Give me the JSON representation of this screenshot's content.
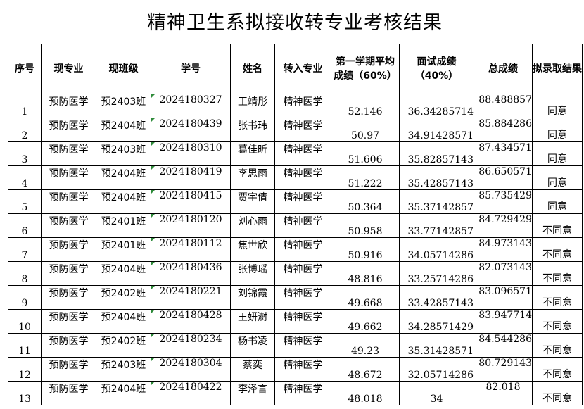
{
  "title": "精神卫生系拟接收转专业考核结果",
  "headers": {
    "index": "序号",
    "major": "现专业",
    "class": "现班级",
    "sid": "学号",
    "name": "姓名",
    "target": "转入专业",
    "first": "第一学期平均成绩（60%）",
    "interview": "面试成绩（40%）",
    "total": "总成绩",
    "result": "拟录取结果"
  },
  "rows": [
    {
      "index": "1",
      "major": "预防医学",
      "class": "预2403班",
      "sid": "2024180327",
      "name": "王靖彤",
      "target": "精神医学",
      "first": "52.146",
      "interview": "36.34285714",
      "total": "88.488857",
      "result": "同意"
    },
    {
      "index": "2",
      "major": "预防医学",
      "class": "预2404班",
      "sid": "2024180439",
      "name": "张书玮",
      "target": "精神医学",
      "first": "50.97",
      "interview": "34.91428571",
      "total": "85.884286",
      "result": "同意"
    },
    {
      "index": "3",
      "major": "预防医学",
      "class": "预2403班",
      "sid": "2024180310",
      "name": "葛佳昕",
      "target": "精神医学",
      "first": "51.606",
      "interview": "35.82857143",
      "total": "87.434571",
      "result": "同意"
    },
    {
      "index": "4",
      "major": "预防医学",
      "class": "预2404班",
      "sid": "2024180419",
      "name": "李思雨",
      "target": "精神医学",
      "first": "51.222",
      "interview": "35.42857143",
      "total": "86.650571",
      "result": "同意"
    },
    {
      "index": "5",
      "major": "预防医学",
      "class": "预2404班",
      "sid": "2024180415",
      "name": "贾宇倩",
      "target": "精神医学",
      "first": "50.364",
      "interview": "35.37142857",
      "total": "85.735429",
      "result": "同意"
    },
    {
      "index": "6",
      "major": "预防医学",
      "class": "预2401班",
      "sid": "2024180120",
      "name": "刘心雨",
      "target": "精神医学",
      "first": "50.958",
      "interview": "33.77142857",
      "total": "84.729429",
      "result": "不同意"
    },
    {
      "index": "7",
      "major": "预防医学",
      "class": "预2401班",
      "sid": "2024180112",
      "name": "焦世欣",
      "target": "精神医学",
      "first": "50.916",
      "interview": "34.05714286",
      "total": "84.973143",
      "result": "不同意"
    },
    {
      "index": "8",
      "major": "预防医学",
      "class": "预2404班",
      "sid": "2024180436",
      "name": "张博瑶",
      "target": "精神医学",
      "first": "48.816",
      "interview": "33.25714286",
      "total": "82.073143",
      "result": "不同意"
    },
    {
      "index": "9",
      "major": "预防医学",
      "class": "预2402班",
      "sid": "2024180221",
      "name": "刘锦霞",
      "target": "精神医学",
      "first": "49.668",
      "interview": "33.42857143",
      "total": "83.096571",
      "result": "不同意"
    },
    {
      "index": "10",
      "major": "预防医学",
      "class": "预2404班",
      "sid": "2024180428",
      "name": "王妍澍",
      "target": "精神医学",
      "first": "49.662",
      "interview": "34.28571429",
      "total": "83.947714",
      "result": "不同意"
    },
    {
      "index": "11",
      "major": "预防医学",
      "class": "预2402班",
      "sid": "2024180234",
      "name": "杨书凌",
      "target": "精神医学",
      "first": "49.23",
      "interview": "35.31428571",
      "total": "84.544286",
      "result": "不同意"
    },
    {
      "index": "12",
      "major": "预防医学",
      "class": "预2403班",
      "sid": "2024180304",
      "name": "蔡奕",
      "target": "精神医学",
      "first": "48.672",
      "interview": "32.05714286",
      "total": "80.729143",
      "result": "不同意"
    },
    {
      "index": "13",
      "major": "预防医学",
      "class": "预2404班",
      "sid": "2024180422",
      "name": "李泽言",
      "target": "精神医学",
      "first": "48.018",
      "interview": "34",
      "total": "82.018",
      "result": "不同意"
    }
  ]
}
